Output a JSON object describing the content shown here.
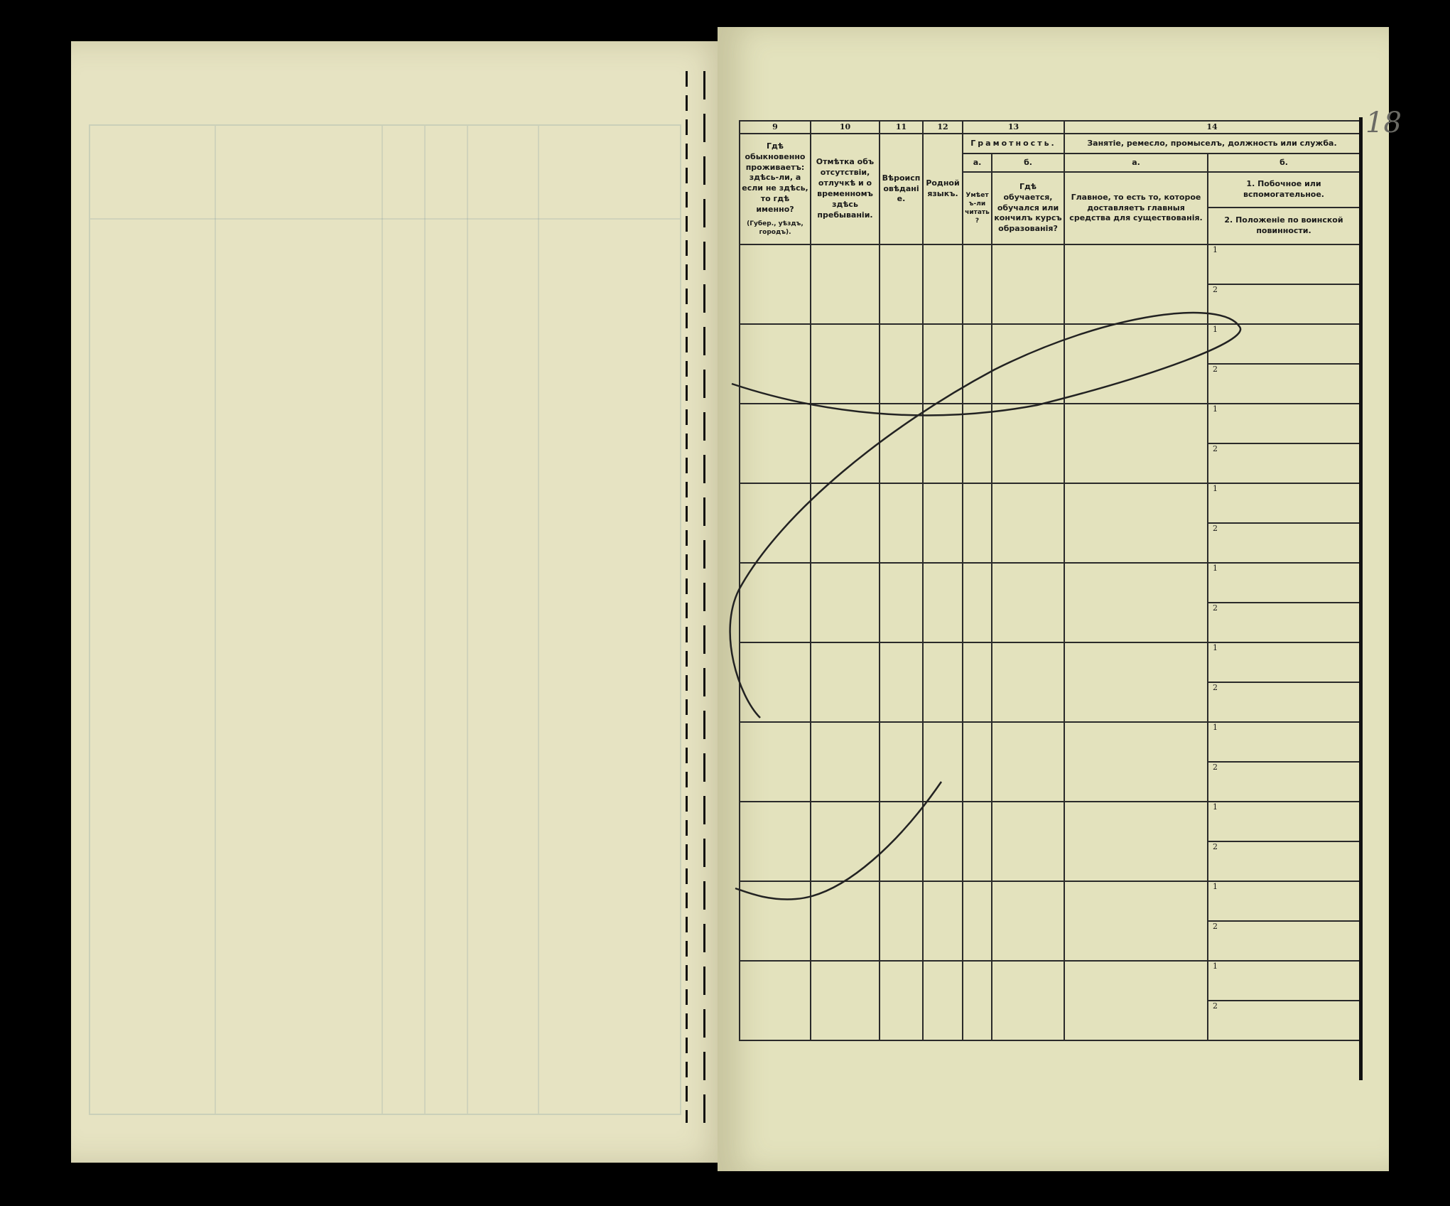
{
  "header": {
    "numbers": [
      "9",
      "10",
      "11",
      "12",
      "13",
      "14"
    ],
    "col9": "Гдѣ обыкновенно проживаетъ: здѣсь-ли, а если не здѣсь, то гдѣ именно?",
    "col9_note": "(Губер., уѣздъ, городъ).",
    "col10": "Отмѣтка объ отсутствіи, отлучкѣ и о временномъ здѣсь пребываніи.",
    "col11": "Вѣроисповѣданіе.",
    "col12": "Родной языкъ.",
    "col13_title": "Грамотность.",
    "col13a_letter": "а.",
    "col13a": "Умѣетъ-ли читать?",
    "col13b_letter": "б.",
    "col13b": "Гдѣ обучается, обучался или кончилъ курсъ образованія?",
    "col14_title": "Занятіе, ремесло, промыселъ, должность или служба.",
    "col14a_letter": "а.",
    "col14a": "Главное, то есть то, которое доставляетъ главныя средства для существованія.",
    "col14b_letter": "б.",
    "col14b_1": "1. Побочное или вспомогательное.",
    "col14b_2": "2. Положеніе по воинской повинности."
  },
  "row_labels": [
    "1",
    "2"
  ],
  "handwritten_page_number": "18"
}
